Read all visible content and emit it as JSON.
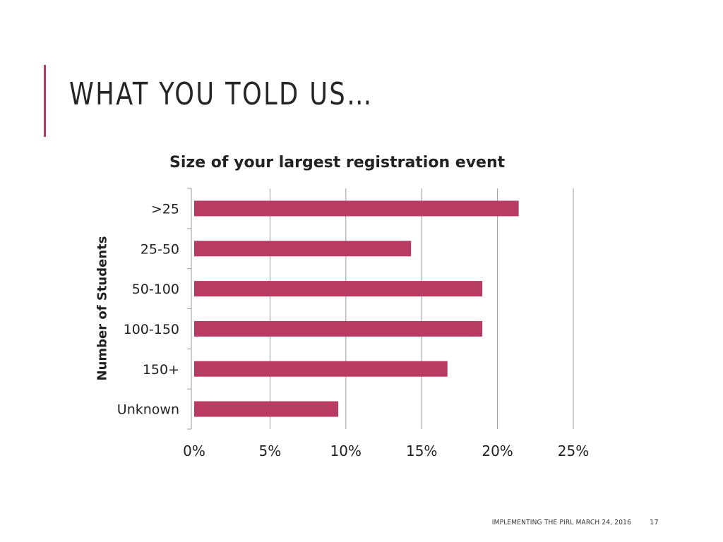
{
  "slide": {
    "title": "WHAT YOU TOLD US…",
    "footer": "IMPLEMENTING THE PIRL MARCH 24, 2016",
    "page_number": "17"
  },
  "colors": {
    "accent": "#b83b63",
    "bar": "#b83b63",
    "grid": "#9a9a9a",
    "axis": "#9a9a9a"
  },
  "chart_data": {
    "type": "bar",
    "orientation": "horizontal",
    "title": "Size of your largest registration event",
    "xlabel": "",
    "ylabel": "Number of Students",
    "categories": [
      ">25",
      "25-50",
      "50-100",
      "100-150",
      "150+",
      "Unknown"
    ],
    "values": [
      21.4,
      14.3,
      19.0,
      19.0,
      16.7,
      9.5
    ],
    "xlim": [
      0,
      25
    ],
    "x_ticks": [
      "0%",
      "5%",
      "10%",
      "15%",
      "20%",
      "25%"
    ],
    "x_tick_values": [
      0,
      5,
      10,
      15,
      20,
      25
    ],
    "grid": "vertical",
    "legend": "none"
  }
}
